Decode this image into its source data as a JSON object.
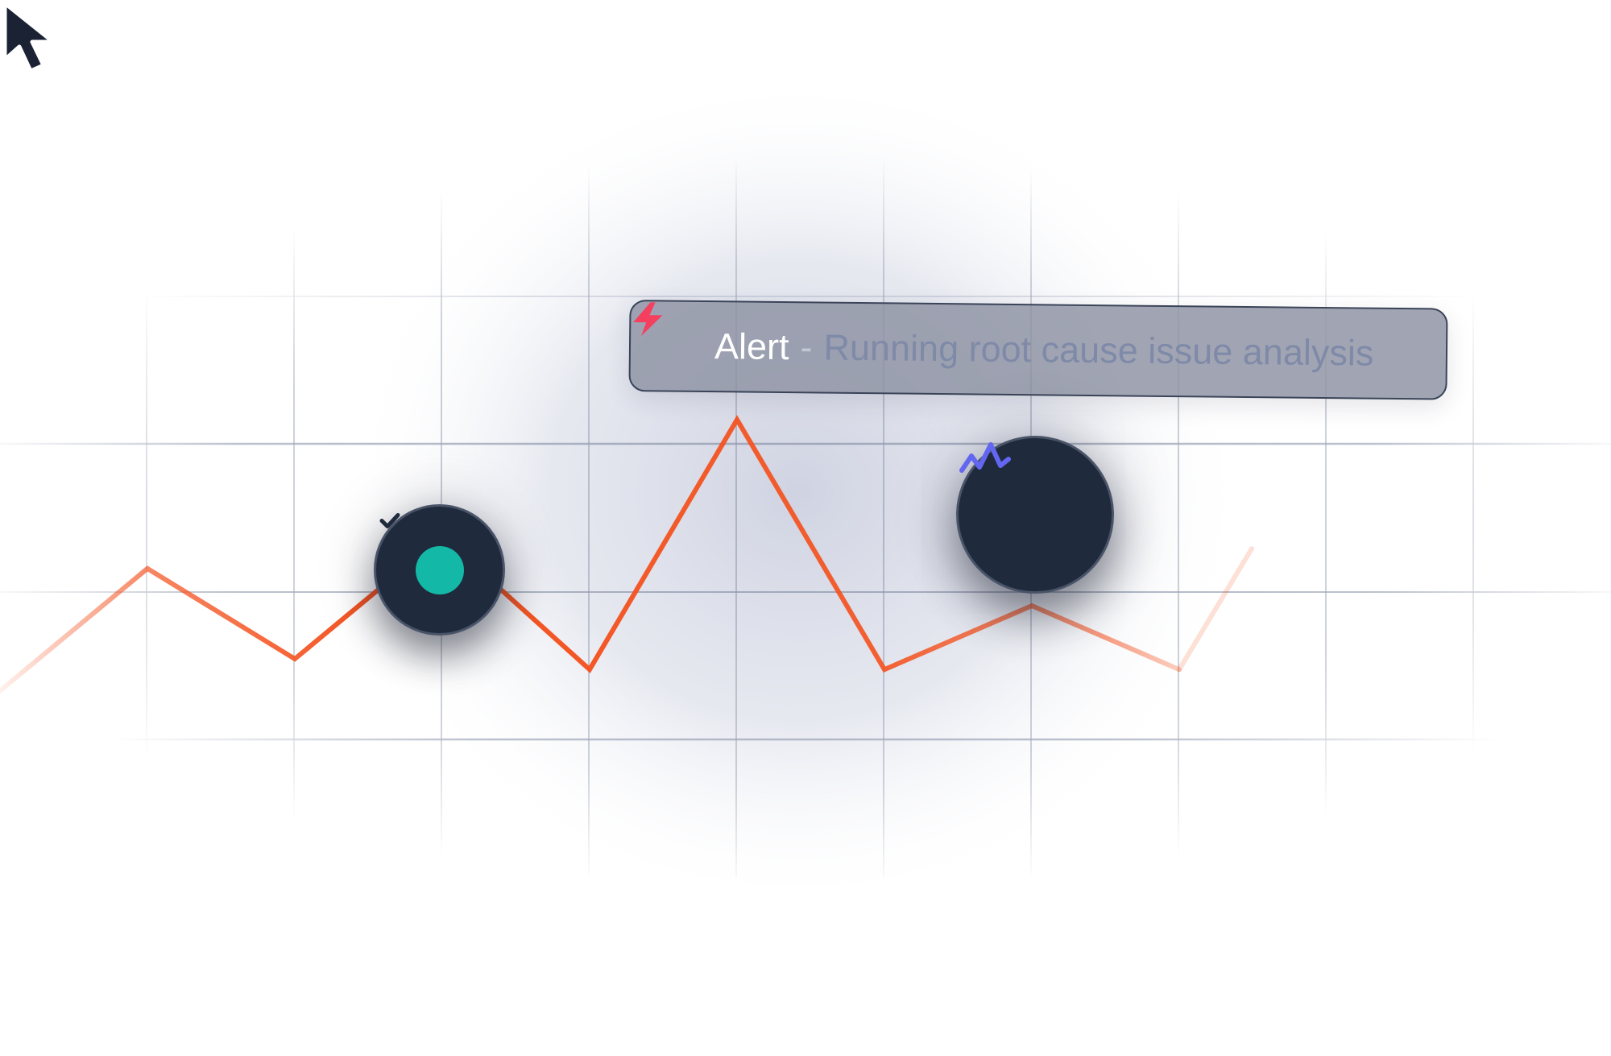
{
  "alert": {
    "title": "Alert",
    "separator": "-",
    "message": "Running root cause issue analysis",
    "bolt_icon": "bolt-icon",
    "bolt_color": "#f43f5e"
  },
  "nodes": {
    "check": {
      "icon": "check-circle-icon",
      "badge_color": "#14b8a6"
    },
    "active": {
      "icon": "activity-icon",
      "icon_color": "#6366f1"
    }
  },
  "colors": {
    "line": "#f4511e",
    "node_bg": "#1f2a3d",
    "grid": "#8a93a8"
  },
  "chart_data": {
    "type": "line",
    "x": [
      0,
      1,
      2,
      3,
      4,
      5,
      6,
      7,
      8
    ],
    "values": [
      0.4,
      2.7,
      1.0,
      3.3,
      0.8,
      5.5,
      0.8,
      2.0,
      0.8
    ],
    "grid": true,
    "title": "",
    "xlabel": "",
    "ylabel": ""
  }
}
